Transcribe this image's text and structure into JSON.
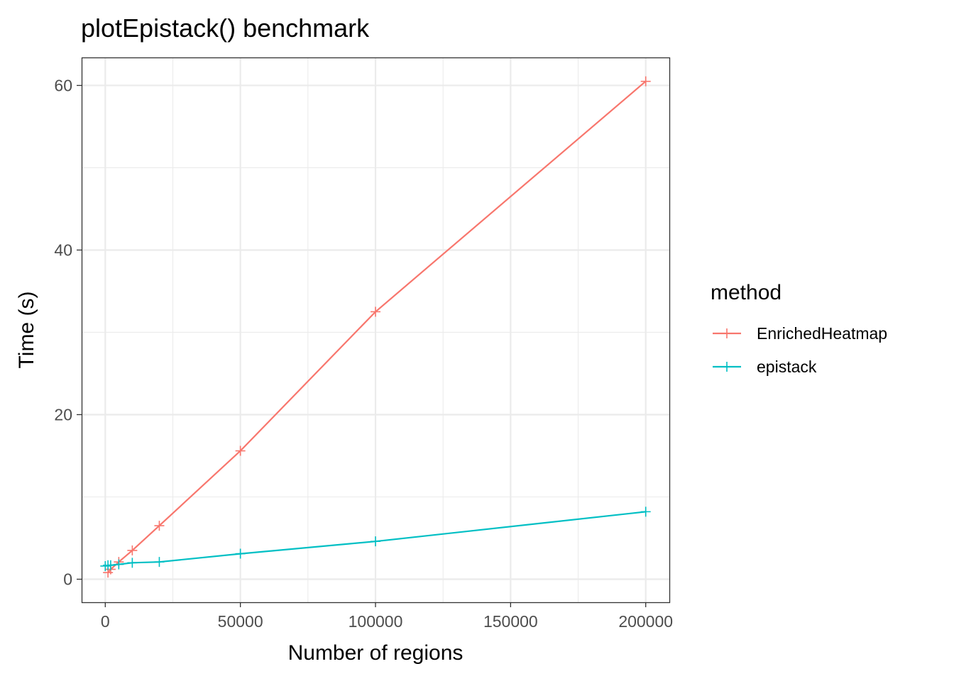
{
  "chart_data": {
    "type": "line",
    "title": "plotEpistack() benchmark",
    "xlabel": "Number of regions",
    "ylabel": "Time (s)",
    "xlim": [
      -8750,
      208750
    ],
    "ylim": [
      -2.8,
      63.4
    ],
    "x_ticks": [
      0,
      50000,
      100000,
      150000,
      200000
    ],
    "x_tick_labels": [
      "0",
      "50000",
      "100000",
      "150000",
      "200000"
    ],
    "y_ticks": [
      0,
      20,
      40,
      60
    ],
    "y_tick_labels": [
      "0",
      "20",
      "40",
      "60"
    ],
    "grid": true,
    "legend": {
      "title": "method",
      "position": "right"
    },
    "series": [
      {
        "name": "EnrichedHeatmap",
        "color": "#F8766D",
        "marker": "plus",
        "points": [
          {
            "x": 1000,
            "y": 0.8
          },
          {
            "x": 2000,
            "y": 1.2
          },
          {
            "x": 5000,
            "y": 2.1
          },
          {
            "x": 10000,
            "y": 3.5
          },
          {
            "x": 20000,
            "y": 6.5
          },
          {
            "x": 50000,
            "y": 15.6
          },
          {
            "x": 100000,
            "y": 32.5
          },
          {
            "x": 200000,
            "y": 60.5
          }
        ]
      },
      {
        "name": "epistack",
        "color": "#00BFC4",
        "marker": "plus",
        "points": [
          {
            "x": 0,
            "y": 1.6
          },
          {
            "x": 1000,
            "y": 1.7
          },
          {
            "x": 2000,
            "y": 1.7
          },
          {
            "x": 5000,
            "y": 1.8
          },
          {
            "x": 10000,
            "y": 2.0
          },
          {
            "x": 20000,
            "y": 2.1
          },
          {
            "x": 50000,
            "y": 3.1
          },
          {
            "x": 100000,
            "y": 4.6
          },
          {
            "x": 200000,
            "y": 8.2
          }
        ]
      }
    ]
  }
}
